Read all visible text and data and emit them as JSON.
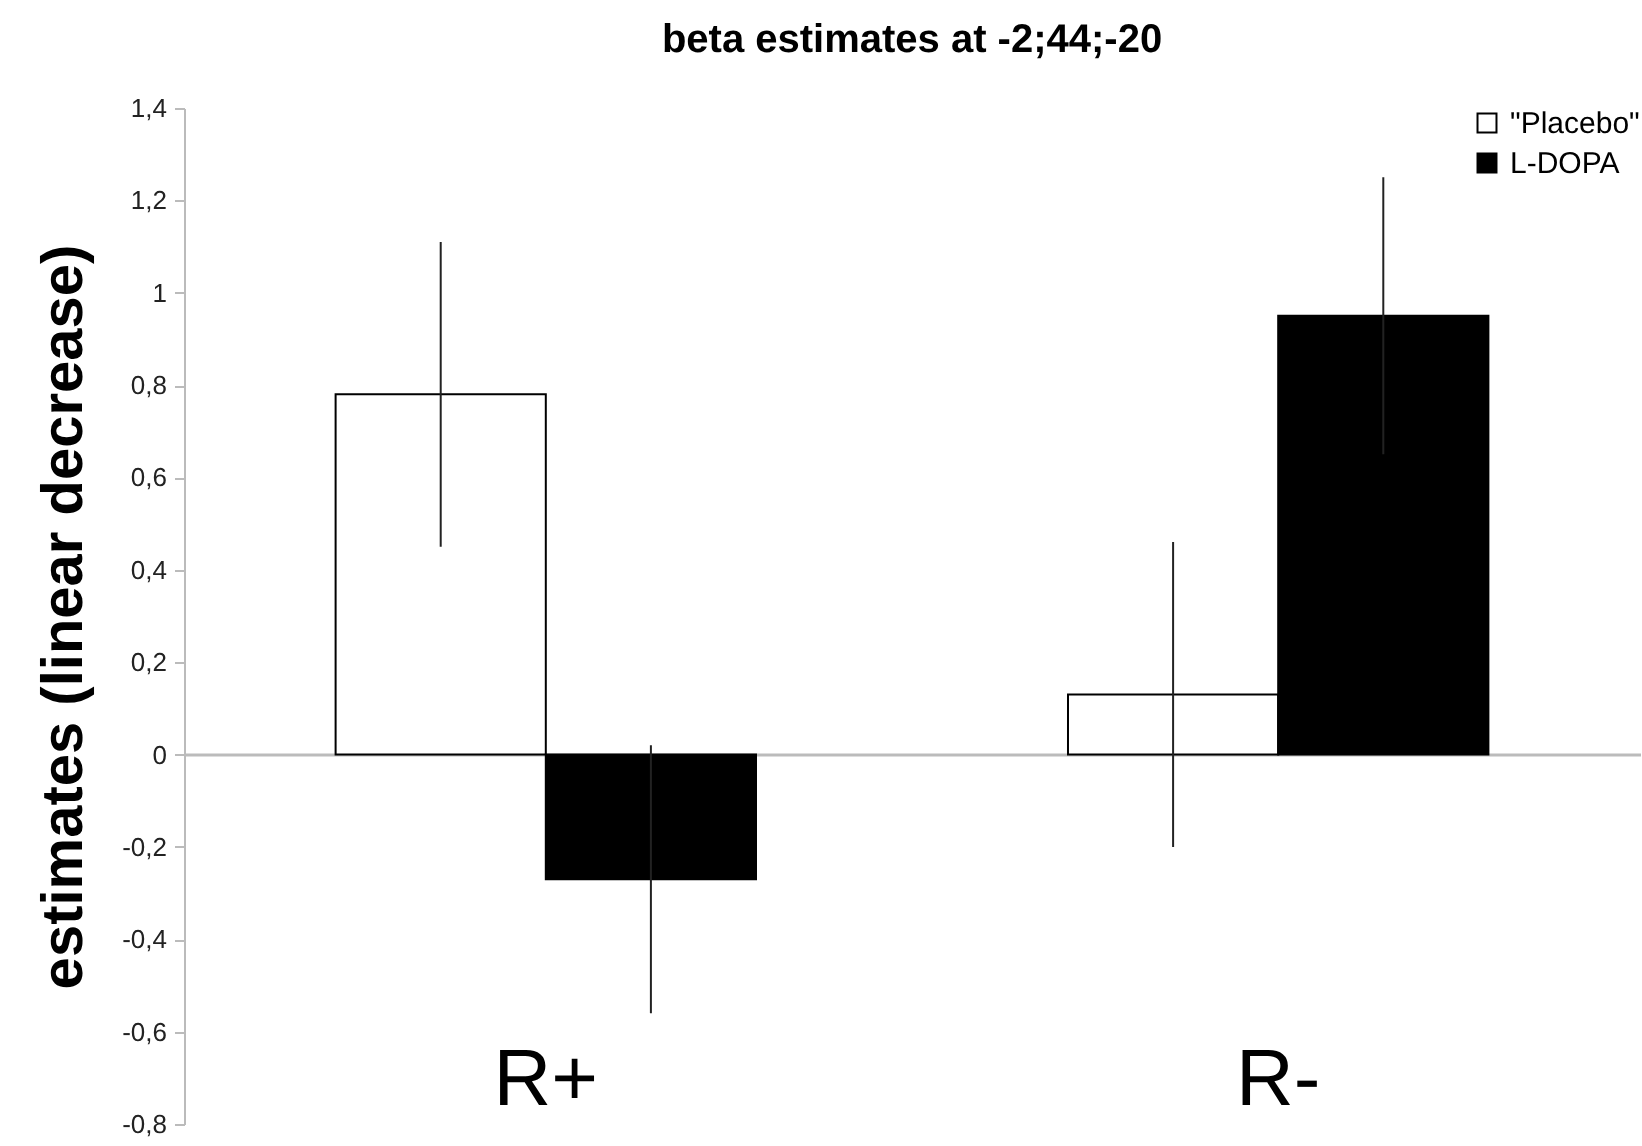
{
  "chart_data": {
    "type": "bar",
    "title": "beta estimates at -2;44;-20",
    "ylabel": "estimates (linear decrease)",
    "categories": [
      "R+",
      "R-"
    ],
    "series": [
      {
        "name": "\"Placebo\"",
        "color": "#ffffff",
        "values": [
          0.78,
          0.13
        ],
        "errors": [
          0.33,
          0.33
        ]
      },
      {
        "name": "L-DOPA",
        "color": "#000000",
        "values": [
          -0.27,
          0.95
        ],
        "errors": [
          0.29,
          0.3
        ]
      }
    ],
    "ylim": [
      -0.8,
      1.4
    ],
    "yticks": [
      {
        "value": -0.8,
        "label": "-0,8"
      },
      {
        "value": -0.6,
        "label": "-0,6"
      },
      {
        "value": -0.4,
        "label": "-0,4"
      },
      {
        "value": -0.2,
        "label": "-0,2"
      },
      0,
      {
        "value": 0.2,
        "label": "0,2"
      },
      {
        "value": 0.4,
        "label": "0,4"
      },
      {
        "value": 0.6,
        "label": "0,6"
      },
      {
        "value": 0.8,
        "label": "0,8"
      },
      1,
      {
        "value": 1.2,
        "label": "1,2"
      },
      {
        "value": 1.4,
        "label": "1,4"
      }
    ],
    "legend": "top right"
  }
}
